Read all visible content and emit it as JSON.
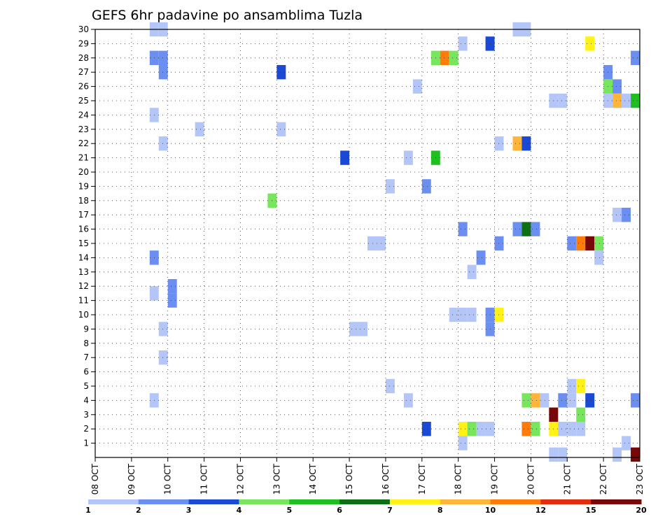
{
  "chart_data": {
    "type": "heatmap",
    "title": "GEFS 6hr padavine po ansamblima Tuzla",
    "x_ticks": [
      "08 OCT",
      "09 OCT",
      "10 OCT",
      "11 OCT",
      "12 OCT",
      "13 OCT",
      "14 OCT",
      "15 OCT",
      "16 OCT",
      "17 OCT",
      "18 OCT",
      "19 OCT",
      "20 OCT",
      "21 OCT",
      "22 OCT",
      "23 OCT"
    ],
    "y_ticks": [
      "1",
      "2",
      "3",
      "4",
      "5",
      "6",
      "7",
      "8",
      "9",
      "10",
      "11",
      "12",
      "13",
      "14",
      "15",
      "16",
      "17",
      "18",
      "19",
      "20",
      "21",
      "22",
      "23",
      "24",
      "25",
      "26",
      "27",
      "28",
      "29",
      "30"
    ],
    "x_range": [
      0,
      15
    ],
    "y_range": [
      0,
      30
    ],
    "grid": true,
    "colorbar": {
      "labels": [
        "1",
        "2",
        "3",
        "4",
        "5",
        "6",
        "7",
        "8",
        "10",
        "12",
        "15",
        "20"
      ],
      "colors": [
        "#b3c6f7",
        "#6b8ff0",
        "#1a49d6",
        "#77e65c",
        "#1fbf1f",
        "#0f6f17",
        "#fff214",
        "#ffb43a",
        "#ff7c0a",
        "#e32b0d",
        "#7a0707"
      ]
    },
    "cells": [
      {
        "x": 1.625,
        "y": 30,
        "c": 0
      },
      {
        "x": 1.875,
        "y": 30,
        "c": 0
      },
      {
        "x": 11.625,
        "y": 30,
        "c": 0
      },
      {
        "x": 11.875,
        "y": 30,
        "c": 0
      },
      {
        "x": 10.125,
        "y": 29,
        "c": 0
      },
      {
        "x": 10.875,
        "y": 29,
        "c": 2
      },
      {
        "x": 13.625,
        "y": 29,
        "c": 6
      },
      {
        "x": 1.625,
        "y": 28,
        "c": 1
      },
      {
        "x": 1.875,
        "y": 28,
        "c": 1
      },
      {
        "x": 9.375,
        "y": 28,
        "c": 3
      },
      {
        "x": 9.625,
        "y": 28,
        "c": 8
      },
      {
        "x": 9.875,
        "y": 28,
        "c": 3
      },
      {
        "x": 14.875,
        "y": 28,
        "c": 1
      },
      {
        "x": 1.875,
        "y": 27,
        "c": 1
      },
      {
        "x": 5.125,
        "y": 27,
        "c": 2
      },
      {
        "x": 14.125,
        "y": 27,
        "c": 1
      },
      {
        "x": 8.875,
        "y": 26,
        "c": 0
      },
      {
        "x": 14.125,
        "y": 26,
        "c": 3
      },
      {
        "x": 14.375,
        "y": 26,
        "c": 1
      },
      {
        "x": 12.625,
        "y": 25,
        "c": 0
      },
      {
        "x": 12.875,
        "y": 25,
        "c": 0
      },
      {
        "x": 14.125,
        "y": 25,
        "c": 0
      },
      {
        "x": 14.375,
        "y": 25,
        "c": 7
      },
      {
        "x": 14.625,
        "y": 25,
        "c": 0
      },
      {
        "x": 14.875,
        "y": 25,
        "c": 4
      },
      {
        "x": 1.625,
        "y": 24,
        "c": 0
      },
      {
        "x": 2.875,
        "y": 23,
        "c": 0
      },
      {
        "x": 5.125,
        "y": 23,
        "c": 0
      },
      {
        "x": 1.875,
        "y": 22,
        "c": 0
      },
      {
        "x": 11.125,
        "y": 22,
        "c": 0
      },
      {
        "x": 11.625,
        "y": 22,
        "c": 7
      },
      {
        "x": 11.875,
        "y": 22,
        "c": 2
      },
      {
        "x": 6.875,
        "y": 21,
        "c": 2
      },
      {
        "x": 8.625,
        "y": 21,
        "c": 0
      },
      {
        "x": 9.375,
        "y": 21,
        "c": 4
      },
      {
        "x": 8.125,
        "y": 19,
        "c": 0
      },
      {
        "x": 9.125,
        "y": 19,
        "c": 1
      },
      {
        "x": 4.875,
        "y": 18,
        "c": 3
      },
      {
        "x": 14.375,
        "y": 17,
        "c": 0
      },
      {
        "x": 14.625,
        "y": 17,
        "c": 1
      },
      {
        "x": 10.125,
        "y": 16,
        "c": 1
      },
      {
        "x": 11.625,
        "y": 16,
        "c": 1
      },
      {
        "x": 11.875,
        "y": 16,
        "c": 5
      },
      {
        "x": 12.125,
        "y": 16,
        "c": 1
      },
      {
        "x": 7.625,
        "y": 15,
        "c": 0
      },
      {
        "x": 7.875,
        "y": 15,
        "c": 0
      },
      {
        "x": 11.125,
        "y": 15,
        "c": 1
      },
      {
        "x": 13.125,
        "y": 15,
        "c": 1
      },
      {
        "x": 13.375,
        "y": 15,
        "c": 8
      },
      {
        "x": 13.625,
        "y": 15,
        "c": 10
      },
      {
        "x": 13.875,
        "y": 15,
        "c": 3
      },
      {
        "x": 1.625,
        "y": 14,
        "c": 1
      },
      {
        "x": 10.625,
        "y": 14,
        "c": 1
      },
      {
        "x": 13.875,
        "y": 14,
        "c": 0
      },
      {
        "x": 10.375,
        "y": 13,
        "c": 0
      },
      {
        "x": 2.125,
        "y": 12,
        "c": 1
      },
      {
        "x": 1.625,
        "y": 11.5,
        "c": 0
      },
      {
        "x": 2.125,
        "y": 11,
        "c": 1
      },
      {
        "x": 9.875,
        "y": 10,
        "c": 0
      },
      {
        "x": 10.125,
        "y": 10,
        "c": 0
      },
      {
        "x": 10.375,
        "y": 10,
        "c": 0
      },
      {
        "x": 10.875,
        "y": 10,
        "c": 1
      },
      {
        "x": 11.125,
        "y": 10,
        "c": 6
      },
      {
        "x": 1.875,
        "y": 9,
        "c": 0
      },
      {
        "x": 7.125,
        "y": 9,
        "c": 0
      },
      {
        "x": 7.375,
        "y": 9,
        "c": 0
      },
      {
        "x": 10.875,
        "y": 9,
        "c": 1
      },
      {
        "x": 1.875,
        "y": 7,
        "c": 0
      },
      {
        "x": 8.125,
        "y": 5,
        "c": 0
      },
      {
        "x": 13.125,
        "y": 5,
        "c": 0
      },
      {
        "x": 13.375,
        "y": 5,
        "c": 6
      },
      {
        "x": 1.625,
        "y": 4,
        "c": 0
      },
      {
        "x": 8.625,
        "y": 4,
        "c": 0
      },
      {
        "x": 11.875,
        "y": 4,
        "c": 3
      },
      {
        "x": 12.125,
        "y": 4,
        "c": 7
      },
      {
        "x": 12.375,
        "y": 4,
        "c": 0
      },
      {
        "x": 12.875,
        "y": 4,
        "c": 1
      },
      {
        "x": 13.125,
        "y": 4,
        "c": 0
      },
      {
        "x": 13.625,
        "y": 4,
        "c": 2
      },
      {
        "x": 14.875,
        "y": 4,
        "c": 1
      },
      {
        "x": 12.625,
        "y": 3,
        "c": 10
      },
      {
        "x": 13.375,
        "y": 3,
        "c": 3
      },
      {
        "x": 9.125,
        "y": 2,
        "c": 2
      },
      {
        "x": 10.125,
        "y": 2,
        "c": 6
      },
      {
        "x": 10.375,
        "y": 2,
        "c": 3
      },
      {
        "x": 10.625,
        "y": 2,
        "c": 0
      },
      {
        "x": 10.875,
        "y": 2,
        "c": 0
      },
      {
        "x": 11.875,
        "y": 2,
        "c": 8
      },
      {
        "x": 12.125,
        "y": 2,
        "c": 3
      },
      {
        "x": 12.625,
        "y": 2,
        "c": 6
      },
      {
        "x": 12.875,
        "y": 2,
        "c": 0
      },
      {
        "x": 13.125,
        "y": 2,
        "c": 0
      },
      {
        "x": 13.375,
        "y": 2,
        "c": 0
      },
      {
        "x": 10.125,
        "y": 1,
        "c": 0
      },
      {
        "x": 14.625,
        "y": 1,
        "c": 0
      },
      {
        "x": 12.625,
        "y": 0.2,
        "c": 0
      },
      {
        "x": 12.875,
        "y": 0.2,
        "c": 0
      },
      {
        "x": 14.375,
        "y": 0.2,
        "c": 0
      },
      {
        "x": 14.875,
        "y": 0.2,
        "c": 10
      }
    ]
  }
}
